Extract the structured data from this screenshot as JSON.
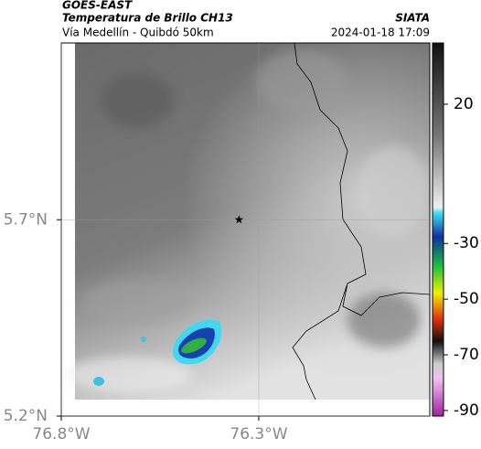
{
  "header": {
    "title": "GOES-EAST",
    "subtitle": "Temperatura de Brillo CH13",
    "source": "SIATA",
    "location": "Vía Medellín - Quibdó 50km",
    "datetime": "2024-01-18 17:09"
  },
  "map": {
    "xlim": [
      -76.8,
      -75.867
    ],
    "ylim": [
      5.2,
      6.15
    ],
    "xticks": [
      {
        "value": -76.8,
        "label": "76.8°W"
      },
      {
        "value": -76.3,
        "label": "76.3°W"
      }
    ],
    "yticks": [
      {
        "value": 5.2,
        "label": "5.2°N"
      },
      {
        "value": 5.7,
        "label": "5.7°N"
      }
    ],
    "grid": true,
    "marker": {
      "lon": -76.35,
      "lat": 5.7
    }
  },
  "colorbar": {
    "lim": [
      -92,
      42
    ],
    "ticks": [
      20,
      -30,
      -50,
      -70,
      -90
    ]
  }
}
